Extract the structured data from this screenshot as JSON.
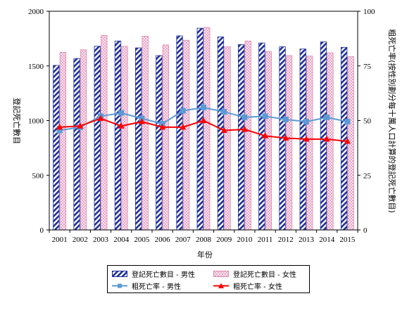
{
  "chart_data": {
    "type": "bar",
    "title": "",
    "xlabel": "年份",
    "ylabel_left": "登記死亡數目",
    "ylabel_right": "粗死亡率(按性別劃分每十萬人口計算的登記死亡數目)",
    "ylim_left": [
      0,
      2000
    ],
    "ylim_right": [
      0,
      100
    ],
    "yticks_left": [
      "0",
      "500",
      "1000",
      "1500",
      "2000"
    ],
    "yticks_right": [
      "0",
      "25",
      "50",
      "75",
      "100"
    ],
    "categories": [
      "2001",
      "2002",
      "2003",
      "2004",
      "2005",
      "2006",
      "2007",
      "2008",
      "2009",
      "2010",
      "2011",
      "2012",
      "2013",
      "2014",
      "2015"
    ],
    "bar_series": [
      {
        "name": "登記死亡數目 - 男性",
        "color": "#1f2f9a",
        "values": [
          1505,
          1568,
          1680,
          1728,
          1665,
          1595,
          1775,
          1845,
          1765,
          1695,
          1710,
          1675,
          1655,
          1720,
          1670
        ]
      },
      {
        "name": "登記死亡數目 - 女性",
        "color": "#f2c6dc",
        "values": [
          1625,
          1648,
          1778,
          1680,
          1772,
          1692,
          1735,
          1852,
          1675,
          1728,
          1630,
          1595,
          1590,
          1620,
          1585
        ]
      }
    ],
    "line_series": [
      {
        "name": "粗死亡率 - 男性",
        "color": "#5b9bd5",
        "marker": "square",
        "values": [
          45.5,
          47.0,
          52.0,
          53.5,
          51.0,
          48.5,
          54.5,
          56.0,
          54.0,
          51.5,
          52.0,
          50.5,
          49.5,
          51.5,
          49.5
        ]
      },
      {
        "name": "粗死亡率 - 女性",
        "color": "#ff0000",
        "marker": "triangle",
        "values": [
          47.0,
          47.5,
          51.0,
          47.5,
          49.5,
          47.0,
          47.0,
          50.0,
          45.5,
          46.0,
          43.0,
          42.0,
          41.5,
          41.5,
          40.5
        ]
      }
    ],
    "legend_position": "bottom",
    "grid": false
  }
}
